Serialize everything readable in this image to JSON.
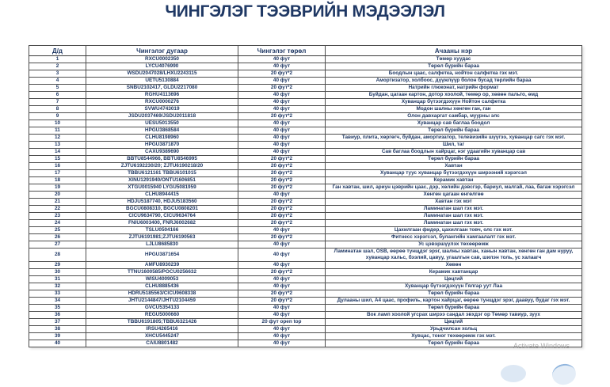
{
  "page": {
    "title": "ЧИНГЭЛЭГ ТЭЭВРИЙН МЭДЭЭЛЭЛ"
  },
  "colors": {
    "title_text": "#1f3864",
    "table_text": "#1f3864",
    "table_border": "#4d4d4d",
    "watermark_text": "#828282"
  },
  "watermark": {
    "label": "Activate Windows"
  },
  "table": {
    "headers": [
      "Д/д",
      "Чингэлэг дугаар",
      "Чингэлэг төрөл",
      "Ачааны нэр"
    ],
    "rows": [
      {
        "n": "1",
        "num": "RXCU0002350",
        "type": "40 фут",
        "cargo": "Төмөр хуудас"
      },
      {
        "n": "2",
        "num": "LYCU4076990",
        "type": "40 фут",
        "cargo": "Төрөл бүрийн бараа"
      },
      {
        "n": "3",
        "num": "WSDU2047028/LHXU2243115",
        "type": "20 фут*2",
        "cargo": "Боодлын цаас, салфетка, нойтон салфетка гэх мэт."
      },
      {
        "n": "4",
        "num": "UETU5130884",
        "type": "40 фут",
        "cargo": "Амортизатор, холбоос, дүүжлүүр болон бусад төрлийн бараа"
      },
      {
        "n": "5",
        "num": "SNBU2102417,  GLDU2217080",
        "type": "20 фут*2",
        "cargo": "Натрийн глюконат, натрийн формат"
      },
      {
        "n": "6",
        "num": "RGHU4113696",
        "type": "40 фут",
        "cargo": "Буйдан, цагаан картон, дотор хоолой, төмөр ор, хөвөн пальто, өмд"
      },
      {
        "n": "7",
        "num": "RXCU0000276",
        "type": "40 фут",
        "cargo": "Хуванцар бүтээгдэхүүн Нойтон салфетка"
      },
      {
        "n": "8",
        "num": "SVWU4743019",
        "type": "40 фут",
        "cargo": "Модон шалны хөнгөн ган, ган"
      },
      {
        "n": "9",
        "num": "JSDU2037469/JSDU2011818",
        "type": "20 фут*2",
        "cargo": "Олон давхаргат самбар, муурны элс"
      },
      {
        "n": "10",
        "num": "UESU5013550",
        "type": "40 фут",
        "cargo": "Хуванцар сав баглаа боодол"
      },
      {
        "n": "11",
        "num": "HPGU3868584",
        "type": "40 фут",
        "cargo": "Төрөл бүрийн бараа"
      },
      {
        "n": "12",
        "num": "CLHU8198960",
        "type": "40 фут",
        "cargo": "Тавиур, плита, хөргөгч, буйдан, амортизатор, телевизийн шүүгээ, хуванцар сагс гэх мэт."
      },
      {
        "n": "13",
        "num": "HPGU3871870",
        "type": "40 фут",
        "cargo": "Шил, таг"
      },
      {
        "n": "14",
        "num": "CAXU9389690",
        "type": "40 фут",
        "cargo": "Сав баглаа боодлын хайрцаг, нэг удаагийн хуванцар сав"
      },
      {
        "n": "15",
        "num": "BBTU8544966,  BBTU8546995",
        "type": "20 фут*2",
        "cargo": "Төрөл бүрийн бараа"
      },
      {
        "n": "16",
        "num": "ZJTU6192230/20;  ZJTU6190218/20",
        "type": "20 фут*2",
        "cargo": "Хавтан"
      },
      {
        "n": "17",
        "num": "TBBU6121161 TBBU6101015",
        "type": "20 фут*2",
        "cargo": "Хуванцар туус хуванцар бүтээгдэхүүн ширээний хэрэгсэл"
      },
      {
        "n": "18",
        "num": "XINU1291940/ONTU1606851",
        "type": "20 фут*2",
        "cargo": "Керамик хавтан"
      },
      {
        "n": "19",
        "num": "XTGU0015940 LYGU5081959",
        "type": "20 фут*2",
        "cargo": "Ган хавтан, шил, ариун цэврийн цаас, дэр, хөлийн дэвсгэр, бариул, малгай, лаа, багаж хэрэгсэл"
      },
      {
        "n": "20",
        "num": "CLHU8944415",
        "type": "40 фут",
        "cargo": "Хөнгөн цагаан өнгөлгөө"
      },
      {
        "n": "21",
        "num": "HDJU5187740,  HDJU5183560",
        "type": "20 фут*2",
        "cargo": "Хавтан гэх мэт"
      },
      {
        "n": "22",
        "num": "BGCU0808310,  BGCU0808201",
        "type": "20 фут*2",
        "cargo": "Ламинатан шал гэх мэт."
      },
      {
        "n": "23",
        "num": "CICU9634790,  CICU9634764",
        "type": "20 фут*2",
        "cargo": "Ламинатан шал гэх мэт."
      },
      {
        "n": "24",
        "num": "FNIU6003400,  FNRJ6002682",
        "type": "20 фут*2",
        "cargo": "Ламинатан шал гэх мэт."
      },
      {
        "n": "25",
        "num": "TSLU0504166",
        "type": "40 фут",
        "cargo": "Цахилгаан фидер, цахилгаан товч, олс гэх мэт."
      },
      {
        "n": "26",
        "num": "ZJTU6191981;ZJTU6190563",
        "type": "20 фут*2",
        "cargo": "Фитнесс хэрэгсэл, булангийн хамгаалалт гэх мэт."
      },
      {
        "n": "27",
        "num": "LJLU8685830",
        "type": "40 фут",
        "cargo": "Ус цэвэршүүлэх төхөөрөмж"
      },
      {
        "n": "28",
        "num": "HPGU3871654",
        "type": "40 фут",
        "cargo": "Ламинатан шал, OSB, өөрөө тунщдэг эрэг, шалны хавтан, ханын хавтан, хөнгөн ган дам нуруу, хуванцар хальс, бээлий, цавуу, угаалгын сав, шилэн толь, ус халаагч"
      },
      {
        "n": "29",
        "num": "AMFU8930239",
        "type": "40 фут",
        "cargo": "Хөвөн"
      },
      {
        "n": "30",
        "num": "TTNU1600585/POCU0256632",
        "type": "20 фут*2",
        "cargo": "Керамик хавтанцар"
      },
      {
        "n": "31",
        "num": "WISU4009053",
        "type": "40 фут",
        "cargo": "Цөцгий"
      },
      {
        "n": "32",
        "num": "CLHU8885436",
        "type": "40 фут",
        "cargo": "Хуванцар бүтээгдэхүүн Гялгар уут Лаа"
      },
      {
        "n": "33",
        "num": "HDRU5185563/CICU9608338",
        "type": "20 фут*2",
        "cargo": "Төрөл бүрийн бараа"
      },
      {
        "n": "34",
        "num": "JHTU2144847/JHTU2104459",
        "type": "20 фут*2",
        "cargo": "Дулааны шил, А4 цаас, профиль, картон хайрцаг, өөрөө тунщдэг эрэг, даавуу, будаг гэх мэт."
      },
      {
        "n": "35",
        "num": "GVCU5354133",
        "type": "40 фут",
        "cargo": "Төрөл бүрийн бараа"
      },
      {
        "n": "36",
        "num": "REGU5000660",
        "type": "40 фут",
        "cargo": "Вок ламп хоолой угсрах ширээ сандал эвхдэг ор Төмөр тавиур,  зуух"
      },
      {
        "n": "37",
        "num": "TBBU6191805;TBBU6321426",
        "type": "20 фут open top",
        "cargo": "Цөцгий"
      },
      {
        "n": "38",
        "num": "IRSU4265416",
        "type": "40 фут",
        "cargo": "Урьдчилсан хольц"
      },
      {
        "n": "39",
        "num": "XHCU5445247",
        "type": "40 фут",
        "cargo": "Хувцас, тоног төхөөрөмж гэх мэт."
      },
      {
        "n": "40",
        "num": "CAIU8801482",
        "type": "40 фут",
        "cargo": "Төрөл бүрийн бараа"
      }
    ]
  }
}
